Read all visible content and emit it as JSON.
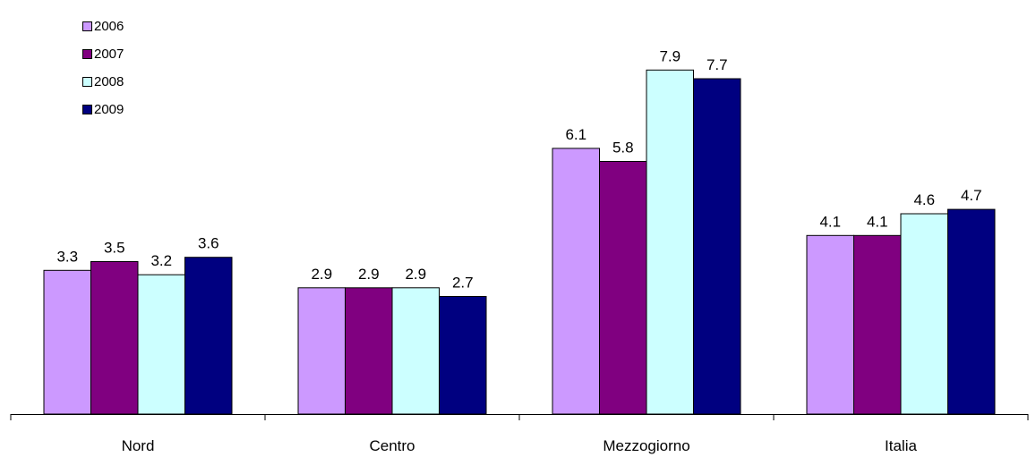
{
  "chart_data": {
    "type": "bar",
    "categories": [
      "Nord",
      "Centro",
      "Mezzogiorno",
      "Italia"
    ],
    "series": [
      {
        "name": "2006",
        "color": "#cc99ff",
        "values": [
          3.3,
          2.9,
          6.1,
          4.1
        ],
        "labels": [
          "3.3",
          "2.9",
          "6.1",
          "4.1"
        ]
      },
      {
        "name": "2007",
        "color": "#800080",
        "values": [
          3.5,
          2.9,
          5.8,
          4.1
        ],
        "labels": [
          "3.5",
          "2.9",
          "5.8",
          "4.1"
        ]
      },
      {
        "name": "2008",
        "color": "#ccffff",
        "values": [
          3.2,
          2.9,
          7.9,
          4.6
        ],
        "labels": [
          "3.2",
          "2.9",
          "7.9",
          "4.6"
        ]
      },
      {
        "name": "2009",
        "color": "#000080",
        "values": [
          3.6,
          2.7,
          7.7,
          4.7
        ],
        "labels": [
          "3.6",
          "2.7",
          "7.7",
          "4.7"
        ]
      }
    ],
    "title": "",
    "xlabel": "",
    "ylabel": "",
    "ylim": [
      0,
      8.5
    ],
    "grid": false,
    "legend_position": "top-left",
    "data_labels": true
  }
}
